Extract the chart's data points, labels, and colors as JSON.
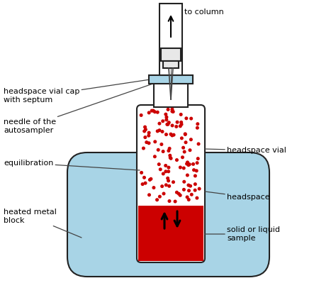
{
  "bg_color": "#ffffff",
  "light_blue": "#a8d4e6",
  "vial_color": "#ffffff",
  "vial_edge": "#222222",
  "cap_color": "#a8d4e6",
  "sample_color": "#cc0000",
  "dot_color": "#cc0000",
  "block_color": "#a8d4e6",
  "needle_color": "#444444",
  "tube_color": "#ffffff",
  "tube_edge": "#222222",
  "arrow_color": "#000000",
  "text_color": "#000000",
  "line_color": "#444444",
  "labels": {
    "to_column": "to column",
    "cap": "headspace vial cap\nwith septum",
    "needle": "needle of the\nautosampler",
    "equilibration": "equilibration",
    "heated_block": "heated metal\nblock",
    "vial": "headspace vial",
    "headspace": "headspace",
    "sample": "solid or liquid\nsample"
  },
  "figsize": [
    4.74,
    3.99
  ],
  "dpi": 100
}
